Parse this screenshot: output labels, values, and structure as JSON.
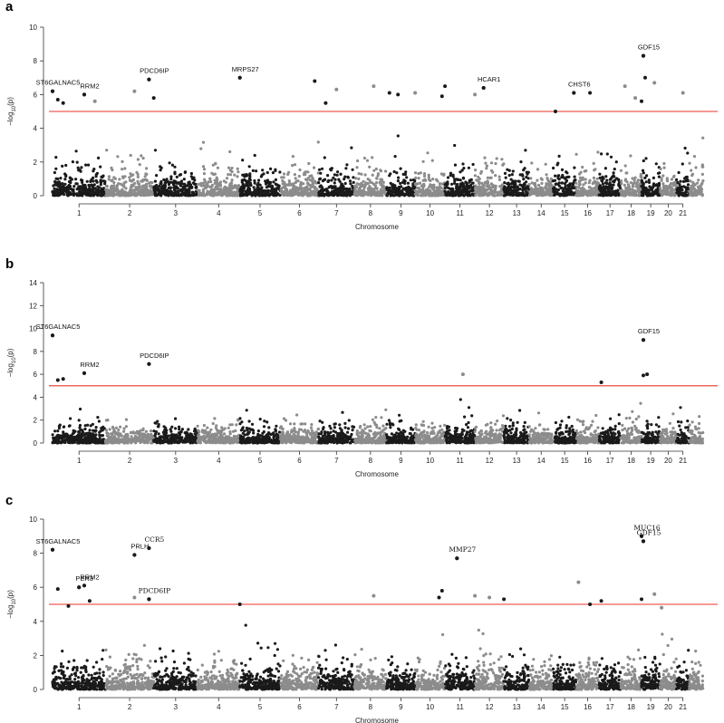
{
  "chart_data": [
    {
      "type": "scatter",
      "panel_label": "a",
      "xlabel": "Chromosome",
      "ylabel_main": "−log",
      "ylabel_sub": "10",
      "ylabel_tail": "(p)",
      "ylim": [
        0,
        10
      ],
      "yticks": [
        0,
        2,
        4,
        6,
        8,
        10
      ],
      "x_tick_labels": [
        "1",
        "2",
        "3",
        "4",
        "5",
        "6",
        "7",
        "8",
        "9",
        "10",
        "11",
        "12",
        "13",
        "14",
        "15",
        "16",
        "17",
        "18",
        "19",
        "20",
        "21"
      ],
      "threshold": 5,
      "threshold_color": "#e8332a",
      "colors": [
        "#1a1a1a",
        "#8c8c8c"
      ],
      "annotations": [
        {
          "label": "ST6GALNAC5",
          "x": 1.0,
          "y": 6.2,
          "font": "sans"
        },
        {
          "label": "RRM2",
          "x": 1.6,
          "y": 6.0,
          "font": "sans"
        },
        {
          "label": "PDCD6IP",
          "x": 2.9,
          "y": 6.9,
          "font": "sans"
        },
        {
          "label": "MRPS27",
          "x": 5.0,
          "y": 7.0,
          "font": "sans"
        },
        {
          "label": "HCAR1",
          "x": 12.3,
          "y": 6.4,
          "font": "sans"
        },
        {
          "label": "CHST6",
          "x": 15.9,
          "y": 6.1,
          "font": "sans"
        },
        {
          "label": "GDF15",
          "x": 19.1,
          "y": 8.3,
          "font": "sans"
        }
      ],
      "highlights": [
        {
          "x": 1.0,
          "y": 6.2,
          "c": 0
        },
        {
          "x": 1.1,
          "y": 5.7,
          "c": 0
        },
        {
          "x": 1.2,
          "y": 5.5,
          "c": 0
        },
        {
          "x": 1.6,
          "y": 6.0,
          "c": 1
        },
        {
          "x": 1.8,
          "y": 5.6,
          "c": 1
        },
        {
          "x": 2.9,
          "y": 6.9,
          "c": 0
        },
        {
          "x": 3.0,
          "y": 5.8,
          "c": 0
        },
        {
          "x": 2.6,
          "y": 6.2,
          "c": 1
        },
        {
          "x": 5.0,
          "y": 7.0,
          "c": 0
        },
        {
          "x": 6.9,
          "y": 6.8,
          "c": 0
        },
        {
          "x": 7.5,
          "y": 6.3,
          "c": 1
        },
        {
          "x": 7.2,
          "y": 5.5,
          "c": 0
        },
        {
          "x": 8.6,
          "y": 6.5,
          "c": 1
        },
        {
          "x": 9.1,
          "y": 6.1,
          "c": 0
        },
        {
          "x": 9.4,
          "y": 6.0,
          "c": 0
        },
        {
          "x": 10.0,
          "y": 6.1,
          "c": 1
        },
        {
          "x": 11.0,
          "y": 6.5,
          "c": 0
        },
        {
          "x": 10.9,
          "y": 5.9,
          "c": 0
        },
        {
          "x": 12.0,
          "y": 6.0,
          "c": 1
        },
        {
          "x": 12.3,
          "y": 6.4,
          "c": 1
        },
        {
          "x": 15.1,
          "y": 5.0,
          "c": 0
        },
        {
          "x": 15.9,
          "y": 6.1,
          "c": 1
        },
        {
          "x": 16.6,
          "y": 6.1,
          "c": 0
        },
        {
          "x": 18.2,
          "y": 6.5,
          "c": 1
        },
        {
          "x": 18.7,
          "y": 5.8,
          "c": 1
        },
        {
          "x": 19.1,
          "y": 8.3,
          "c": 0
        },
        {
          "x": 19.2,
          "y": 7.0,
          "c": 0
        },
        {
          "x": 19.0,
          "y": 5.6,
          "c": 0
        },
        {
          "x": 19.7,
          "y": 6.7,
          "c": 1
        },
        {
          "x": 21.5,
          "y": 6.1,
          "c": 1
        }
      ]
    },
    {
      "type": "scatter",
      "panel_label": "b",
      "xlabel": "Chromosome",
      "ylabel_main": "−log",
      "ylabel_sub": "10",
      "ylabel_tail": "(p)",
      "ylim": [
        0,
        14
      ],
      "yticks": [
        0,
        2,
        4,
        6,
        8,
        10,
        12,
        14
      ],
      "x_tick_labels": [
        "1",
        "2",
        "3",
        "4",
        "5",
        "6",
        "7",
        "8",
        "9",
        "10",
        "11",
        "12",
        "13",
        "14",
        "15",
        "16",
        "17",
        "18",
        "19",
        "20",
        "21"
      ],
      "threshold": 5,
      "threshold_color": "#e8332a",
      "colors": [
        "#1a1a1a",
        "#8c8c8c"
      ],
      "annotations": [
        {
          "label": "ST6GALNAC5",
          "x": 1.0,
          "y": 9.4,
          "font": "sans"
        },
        {
          "label": "RRM2",
          "x": 1.6,
          "y": 6.1,
          "font": "sans"
        },
        {
          "label": "PDCD6IP",
          "x": 2.9,
          "y": 6.9,
          "font": "sans"
        },
        {
          "label": "GDF15",
          "x": 19.1,
          "y": 9.0,
          "font": "sans"
        }
      ],
      "highlights": [
        {
          "x": 1.0,
          "y": 9.4,
          "c": 0
        },
        {
          "x": 1.1,
          "y": 5.5,
          "c": 0
        },
        {
          "x": 1.2,
          "y": 5.6,
          "c": 0
        },
        {
          "x": 1.6,
          "y": 6.1,
          "c": 1
        },
        {
          "x": 2.9,
          "y": 6.9,
          "c": 0
        },
        {
          "x": 11.6,
          "y": 6.0,
          "c": 1
        },
        {
          "x": 17.1,
          "y": 5.3,
          "c": 0
        },
        {
          "x": 19.1,
          "y": 9.0,
          "c": 0
        },
        {
          "x": 19.1,
          "y": 5.9,
          "c": 0
        },
        {
          "x": 19.3,
          "y": 6.0,
          "c": 0
        }
      ]
    },
    {
      "type": "scatter",
      "panel_label": "c",
      "xlabel": "Chromosome",
      "ylabel_main": "−log",
      "ylabel_sub": "10",
      "ylabel_tail": "(p)",
      "ylim": [
        0,
        10
      ],
      "yticks": [
        0,
        2,
        4,
        6,
        8,
        10
      ],
      "x_tick_labels": [
        "1",
        "2",
        "3",
        "4",
        "5",
        "6",
        "7",
        "8",
        "9",
        "10",
        "11",
        "12",
        "13",
        "14",
        "15",
        "16",
        "17",
        "18",
        "19",
        "20",
        "21"
      ],
      "threshold": 5,
      "threshold_color": "#e8332a",
      "colors": [
        "#1a1a1a",
        "#8c8c8c"
      ],
      "annotations": [
        {
          "label": "ST6GALNAC5",
          "x": 1.0,
          "y": 8.2,
          "font": "sans"
        },
        {
          "label": "PER3",
          "x": 0.5,
          "y": 6.0,
          "font": "sans"
        },
        {
          "label": "RRM2",
          "x": 1.6,
          "y": 6.1,
          "font": "sans"
        },
        {
          "label": "PRLH",
          "x": 2.6,
          "y": 7.9,
          "font": "sans"
        },
        {
          "label": "CCR5",
          "x": 2.9,
          "y": 8.3,
          "font": "serif"
        },
        {
          "label": "PDCD6IP",
          "x": 2.9,
          "y": 5.3,
          "font": "serif"
        },
        {
          "label": "MMP27",
          "x": 11.4,
          "y": 7.7,
          "font": "serif"
        },
        {
          "label": "MUC16",
          "x": 19.0,
          "y": 9.0,
          "font": "serif"
        },
        {
          "label": "GDF15",
          "x": 19.1,
          "y": 8.7,
          "font": "serif"
        }
      ],
      "highlights": [
        {
          "x": 1.0,
          "y": 8.2,
          "c": 0
        },
        {
          "x": 0.5,
          "y": 6.0,
          "c": 0
        },
        {
          "x": 0.7,
          "y": 5.2,
          "c": 0
        },
        {
          "x": 1.1,
          "y": 5.9,
          "c": 0
        },
        {
          "x": 1.3,
          "y": 4.9,
          "c": 0
        },
        {
          "x": 1.6,
          "y": 6.1,
          "c": 1
        },
        {
          "x": 2.6,
          "y": 7.9,
          "c": 1
        },
        {
          "x": 2.6,
          "y": 5.4,
          "c": 1
        },
        {
          "x": 2.9,
          "y": 8.3,
          "c": 0
        },
        {
          "x": 2.9,
          "y": 5.3,
          "c": 0
        },
        {
          "x": 5.0,
          "y": 5.0,
          "c": 0
        },
        {
          "x": 8.6,
          "y": 5.5,
          "c": 1
        },
        {
          "x": 10.9,
          "y": 5.8,
          "c": 0
        },
        {
          "x": 10.8,
          "y": 5.4,
          "c": 0
        },
        {
          "x": 11.4,
          "y": 7.7,
          "c": 0
        },
        {
          "x": 12.0,
          "y": 5.5,
          "c": 1
        },
        {
          "x": 12.5,
          "y": 5.4,
          "c": 1
        },
        {
          "x": 13.0,
          "y": 5.3,
          "c": 0
        },
        {
          "x": 16.1,
          "y": 6.3,
          "c": 1
        },
        {
          "x": 16.6,
          "y": 5.0,
          "c": 0
        },
        {
          "x": 17.1,
          "y": 5.2,
          "c": 0
        },
        {
          "x": 19.0,
          "y": 9.0,
          "c": 0
        },
        {
          "x": 19.1,
          "y": 8.7,
          "c": 0
        },
        {
          "x": 19.0,
          "y": 5.3,
          "c": 0
        },
        {
          "x": 19.7,
          "y": 5.6,
          "c": 1
        },
        {
          "x": 20.1,
          "y": 4.8,
          "c": 1
        }
      ]
    }
  ]
}
